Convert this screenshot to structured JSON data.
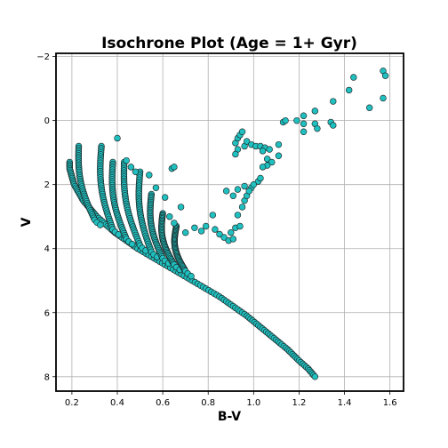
{
  "chart_data": {
    "type": "scatter",
    "title": "Isochrone Plot (Age = 1+ Gyr)",
    "xlabel": "B-V",
    "ylabel": "V",
    "xlim": [
      0.13,
      1.66
    ],
    "ylim": [
      8.45,
      -2.1
    ],
    "y_inverted": true,
    "xticks": [
      0.2,
      0.4,
      0.6,
      0.8,
      1.0,
      1.2,
      1.4,
      1.6
    ],
    "xtick_labels": [
      "0.2",
      "0.4",
      "0.6",
      "0.8",
      "1.0",
      "1.2",
      "1.4",
      "1.6"
    ],
    "yticks": [
      -2,
      0,
      2,
      4,
      6,
      8
    ],
    "ytick_labels": [
      "−2",
      "0",
      "2",
      "4",
      "6",
      "8"
    ],
    "grid": true,
    "marker_color": "#20c0c0",
    "marker_edge_color": "#1a1a1a",
    "main_sequence": [
      [
        0.19,
        1.3
      ],
      [
        0.19,
        1.5
      ],
      [
        0.2,
        1.75
      ],
      [
        0.21,
        2.0
      ],
      [
        0.23,
        2.25
      ],
      [
        0.25,
        2.5
      ],
      [
        0.28,
        2.75
      ],
      [
        0.31,
        3.0
      ],
      [
        0.35,
        3.25
      ],
      [
        0.39,
        3.5
      ],
      [
        0.44,
        3.75
      ],
      [
        0.49,
        4.0
      ],
      [
        0.55,
        4.25
      ],
      [
        0.61,
        4.5
      ],
      [
        0.67,
        4.75
      ],
      [
        0.73,
        5.0
      ],
      [
        0.79,
        5.25
      ],
      [
        0.85,
        5.5
      ],
      [
        0.91,
        5.8
      ],
      [
        0.97,
        6.1
      ],
      [
        1.03,
        6.45
      ],
      [
        1.09,
        6.8
      ],
      [
        1.15,
        7.15
      ],
      [
        1.2,
        7.5
      ],
      [
        1.24,
        7.75
      ],
      [
        1.27,
        8.0
      ]
    ],
    "turnoff_branches": [
      {
        "start": [
          0.23,
          0.8
        ],
        "end": [
          0.3,
          3.1
        ]
      },
      {
        "start": [
          0.33,
          0.8
        ],
        "end": [
          0.38,
          3.4
        ]
      },
      {
        "start": [
          0.38,
          1.3
        ],
        "end": [
          0.44,
          3.7
        ]
      },
      {
        "start": [
          0.43,
          1.3
        ],
        "end": [
          0.5,
          3.9
        ]
      },
      {
        "start": [
          0.5,
          1.6
        ],
        "end": [
          0.55,
          4.1
        ]
      },
      {
        "start": [
          0.55,
          2.3
        ],
        "end": [
          0.6,
          4.3
        ]
      },
      {
        "start": [
          0.6,
          2.9
        ],
        "end": [
          0.65,
          4.5
        ]
      },
      {
        "start": [
          0.66,
          3.3
        ],
        "end": [
          0.7,
          4.7
        ]
      }
    ],
    "scatter_points": [
      [
        0.4,
        0.55
      ],
      [
        0.44,
        1.25
      ],
      [
        0.46,
        1.45
      ],
      [
        0.48,
        1.6
      ],
      [
        0.54,
        1.7
      ],
      [
        0.57,
        2.1
      ],
      [
        0.61,
        2.4
      ],
      [
        0.64,
        1.5
      ],
      [
        0.65,
        1.45
      ],
      [
        0.63,
        3.0
      ],
      [
        0.65,
        3.2
      ],
      [
        0.68,
        2.7
      ],
      [
        0.7,
        3.5
      ],
      [
        0.74,
        3.35
      ],
      [
        0.77,
        3.45
      ],
      [
        0.79,
        3.3
      ],
      [
        0.82,
        2.95
      ],
      [
        0.83,
        3.4
      ],
      [
        0.85,
        3.55
      ],
      [
        0.87,
        3.65
      ],
      [
        0.89,
        3.75
      ],
      [
        0.9,
        3.5
      ],
      [
        0.92,
        3.35
      ],
      [
        0.91,
        3.7
      ],
      [
        0.94,
        3.3
      ],
      [
        0.93,
        2.95
      ],
      [
        0.95,
        2.7
      ],
      [
        0.96,
        2.5
      ],
      [
        0.97,
        2.35
      ],
      [
        0.99,
        2.1
      ],
      [
        1.02,
        1.9
      ],
      [
        0.88,
        2.2
      ],
      [
        0.91,
        2.35
      ],
      [
        0.93,
        2.15
      ],
      [
        0.96,
        2.05
      ],
      [
        0.98,
        2.2
      ],
      [
        1.0,
        2.0
      ],
      [
        1.03,
        1.8
      ],
      [
        0.92,
        0.7
      ],
      [
        0.93,
        0.9
      ],
      [
        0.92,
        1.05
      ],
      [
        0.93,
        0.55
      ],
      [
        0.94,
        0.45
      ],
      [
        0.95,
        0.35
      ],
      [
        0.96,
        0.8
      ],
      [
        0.97,
        0.65
      ],
      [
        0.99,
        0.75
      ],
      [
        1.01,
        0.8
      ],
      [
        1.03,
        0.8
      ],
      [
        1.05,
        0.85
      ],
      [
        1.07,
        0.9
      ],
      [
        1.04,
        0.95
      ],
      [
        1.06,
        1.2
      ],
      [
        1.08,
        1.3
      ],
      [
        1.06,
        1.4
      ],
      [
        1.04,
        1.45
      ],
      [
        1.11,
        1.1
      ],
      [
        1.11,
        0.75
      ],
      [
        1.13,
        0.05
      ],
      [
        1.14,
        0.0
      ],
      [
        1.19,
        0.0
      ],
      [
        1.22,
        -0.15
      ],
      [
        1.22,
        0.1
      ],
      [
        1.22,
        0.35
      ],
      [
        1.27,
        -0.3
      ],
      [
        1.27,
        0.1
      ],
      [
        1.28,
        0.25
      ],
      [
        1.34,
        0.05
      ],
      [
        1.35,
        0.15
      ],
      [
        1.35,
        -0.6
      ],
      [
        1.42,
        -0.95
      ],
      [
        1.44,
        -1.35
      ],
      [
        1.51,
        -0.4
      ],
      [
        1.57,
        -1.55
      ],
      [
        1.58,
        -1.4
      ],
      [
        1.57,
        -0.7
      ]
    ]
  }
}
